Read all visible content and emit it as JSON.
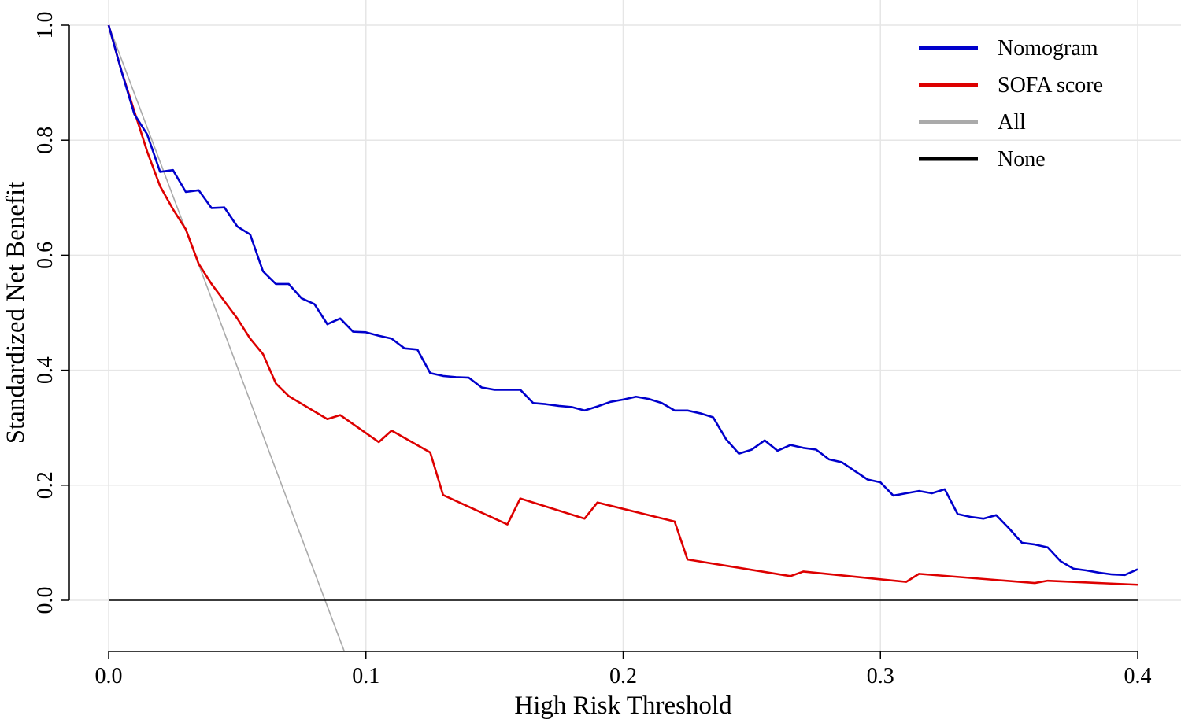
{
  "chart_data": {
    "type": "line",
    "title": "",
    "xlabel": "High Risk Threshold",
    "ylabel": "Standardized Net Benefit",
    "xlim": [
      0,
      0.4
    ],
    "ylim": [
      -0.09,
      1.0
    ],
    "grid": true,
    "legend_position": "top-right",
    "x_ticks": [
      0.0,
      0.1,
      0.2,
      0.3,
      0.4
    ],
    "x_tick_labels": [
      "0.0",
      "0.1",
      "0.2",
      "0.3",
      "0.4"
    ],
    "y_ticks": [
      0.0,
      0.2,
      0.4,
      0.6,
      0.8,
      1.0
    ],
    "y_tick_labels": [
      "0.0",
      "0.2",
      "0.4",
      "0.6",
      "0.8",
      "1.0"
    ],
    "series": [
      {
        "name": "Nomogram",
        "color": "#0000cc",
        "x": [
          0.0,
          0.005,
          0.01,
          0.015,
          0.02,
          0.025,
          0.03,
          0.035,
          0.04,
          0.045,
          0.05,
          0.055,
          0.06,
          0.065,
          0.07,
          0.075,
          0.08,
          0.085,
          0.09,
          0.095,
          0.1,
          0.105,
          0.11,
          0.115,
          0.12,
          0.125,
          0.13,
          0.135,
          0.14,
          0.145,
          0.15,
          0.155,
          0.16,
          0.165,
          0.17,
          0.175,
          0.18,
          0.185,
          0.19,
          0.195,
          0.2,
          0.205,
          0.21,
          0.215,
          0.22,
          0.225,
          0.23,
          0.235,
          0.24,
          0.245,
          0.25,
          0.255,
          0.26,
          0.265,
          0.27,
          0.275,
          0.28,
          0.285,
          0.29,
          0.295,
          0.3,
          0.305,
          0.31,
          0.315,
          0.32,
          0.325,
          0.33,
          0.335,
          0.34,
          0.345,
          0.35,
          0.355,
          0.36,
          0.365,
          0.37,
          0.375,
          0.38,
          0.385,
          0.39,
          0.395,
          0.4
        ],
        "y": [
          1.0,
          0.92,
          0.845,
          0.81,
          0.745,
          0.748,
          0.71,
          0.713,
          0.682,
          0.683,
          0.65,
          0.636,
          0.572,
          0.55,
          0.55,
          0.525,
          0.515,
          0.48,
          0.49,
          0.467,
          0.466,
          0.46,
          0.455,
          0.438,
          0.436,
          0.395,
          0.39,
          0.388,
          0.387,
          0.37,
          0.366,
          0.366,
          0.366,
          0.343,
          0.341,
          0.338,
          0.336,
          0.33,
          0.337,
          0.345,
          0.349,
          0.354,
          0.35,
          0.343,
          0.33,
          0.33,
          0.325,
          0.318,
          0.28,
          0.255,
          0.262,
          0.278,
          0.26,
          0.27,
          0.265,
          0.262,
          0.245,
          0.24,
          0.225,
          0.21,
          0.205,
          0.182,
          0.186,
          0.19,
          0.186,
          0.193,
          0.15,
          0.145,
          0.142,
          0.148,
          0.125,
          0.1,
          0.097,
          0.092,
          0.068,
          0.055,
          0.052,
          0.048,
          0.045,
          0.044,
          0.054
        ]
      },
      {
        "name": "SOFA score",
        "color": "#dd0000",
        "x": [
          0.0,
          0.005,
          0.01,
          0.015,
          0.02,
          0.025,
          0.03,
          0.035,
          0.04,
          0.045,
          0.05,
          0.055,
          0.06,
          0.065,
          0.07,
          0.085,
          0.09,
          0.105,
          0.11,
          0.125,
          0.13,
          0.155,
          0.16,
          0.185,
          0.19,
          0.22,
          0.225,
          0.265,
          0.27,
          0.31,
          0.315,
          0.36,
          0.365,
          0.4
        ],
        "y": [
          1.0,
          0.92,
          0.85,
          0.78,
          0.72,
          0.68,
          0.645,
          0.585,
          0.55,
          0.52,
          0.49,
          0.455,
          0.428,
          0.377,
          0.355,
          0.315,
          0.322,
          0.275,
          0.295,
          0.257,
          0.183,
          0.132,
          0.177,
          0.142,
          0.17,
          0.137,
          0.071,
          0.042,
          0.05,
          0.032,
          0.046,
          0.03,
          0.034,
          0.027
        ]
      },
      {
        "name": "All",
        "color": "#aaaaaa",
        "x": [
          0.0,
          0.0917
        ],
        "y": [
          1.0,
          -0.09
        ]
      },
      {
        "name": "None",
        "color": "#000000",
        "x": [
          0.0,
          0.4
        ],
        "y": [
          0.0,
          0.0
        ]
      }
    ]
  }
}
